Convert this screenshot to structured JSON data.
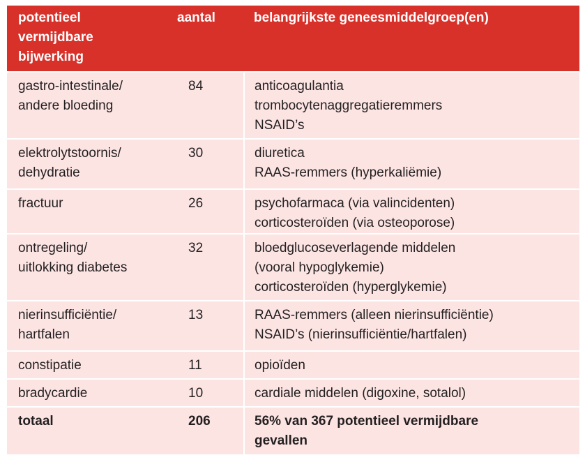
{
  "table": {
    "header": [
      [
        "potentieel",
        "vermijdbare",
        "bijwerking"
      ],
      [
        "aantal"
      ],
      [
        "belangrijkste geneesmiddelgroep(en)"
      ]
    ],
    "rows": [
      {
        "effect": [
          "gastro-intestinale/",
          "andere bloeding"
        ],
        "count": 84,
        "groups": [
          "anticoagulantia",
          "trombocytenaggregatieremmers",
          "NSAID’s"
        ]
      },
      {
        "effect": [
          "elektrolytstoornis/",
          "dehydratie"
        ],
        "count": 30,
        "groups": [
          "diuretica",
          "RAAS-remmers (hyperkaliëmie)"
        ]
      },
      {
        "effect": [
          "fractuur"
        ],
        "count": 26,
        "groups": [
          "psychofarmaca (via valincidenten)",
          "corticosteroïden (via osteoporose)"
        ]
      },
      {
        "effect": [
          "ontregeling/",
          "uitlokking diabetes"
        ],
        "count": 32,
        "groups": [
          "bloedglucoseverlagende middelen",
          "(vooral hypoglykemie)",
          "corticosteroïden (hyperglykemie)"
        ]
      },
      {
        "effect": [
          "nierinsufficiëntie/",
          "hartfalen"
        ],
        "count": 13,
        "groups": [
          "RAAS-remmers (alleen nierinsufficiëntie)",
          "NSAID’s (nierinsufficiëntie/hartfalen)"
        ]
      },
      {
        "effect": [
          "constipatie"
        ],
        "count": 11,
        "groups": [
          "opioïden"
        ]
      },
      {
        "effect": [
          "bradycardie"
        ],
        "count": 10,
        "groups": [
          "cardiale middelen (digoxine, sotalol)"
        ]
      }
    ],
    "total": {
      "effect": [
        "totaal"
      ],
      "count": 206,
      "groups": [
        "56% van 367 potentieel vermijdbare",
        "gevallen"
      ]
    }
  }
}
